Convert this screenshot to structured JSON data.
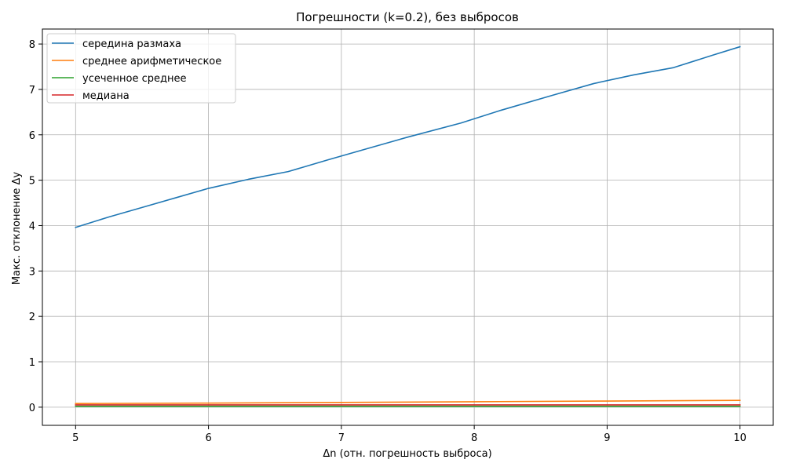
{
  "chart_data": {
    "type": "line",
    "title": "Погрешности (k=0.2), без выбросов",
    "xlabel": "Δn (отн. погрешность выброса)",
    "ylabel": "Макс. отклонение Δy",
    "xlim": [
      4.75,
      10.25
    ],
    "ylim": [
      -0.4,
      8.33
    ],
    "xticks": [
      5,
      6,
      7,
      8,
      9,
      10
    ],
    "yticks": [
      0,
      1,
      2,
      3,
      4,
      5,
      6,
      7,
      8
    ],
    "grid": true,
    "legend_position": "top-left",
    "series": [
      {
        "name": "середина размаха",
        "color": "#1f77b4",
        "x": [
          5.0,
          5.25,
          5.5,
          5.75,
          6.0,
          6.3,
          6.6,
          6.9,
          7.2,
          7.5,
          7.9,
          8.2,
          8.6,
          8.9,
          9.2,
          9.5,
          9.8,
          10.0
        ],
        "y": [
          3.96,
          4.19,
          4.4,
          4.61,
          4.82,
          5.02,
          5.19,
          5.45,
          5.7,
          5.95,
          6.26,
          6.54,
          6.88,
          7.13,
          7.32,
          7.48,
          7.76,
          7.94
        ]
      },
      {
        "name": "среднее арифметическое",
        "color": "#ff7f0e",
        "x": [
          5,
          6,
          7,
          8,
          9,
          10
        ],
        "y": [
          0.08,
          0.09,
          0.105,
          0.12,
          0.135,
          0.15
        ]
      },
      {
        "name": "усеченное среднее",
        "color": "#2ca02c",
        "x": [
          5,
          6,
          7,
          8,
          9,
          10
        ],
        "y": [
          0.02,
          0.02,
          0.02,
          0.02,
          0.02,
          0.02
        ]
      },
      {
        "name": "медиана",
        "color": "#d62728",
        "x": [
          5,
          6,
          7,
          8,
          9,
          10
        ],
        "y": [
          0.05,
          0.05,
          0.05,
          0.05,
          0.05,
          0.05
        ]
      }
    ]
  }
}
